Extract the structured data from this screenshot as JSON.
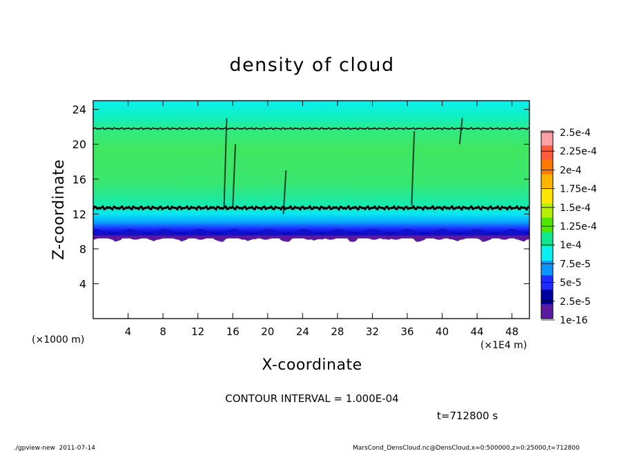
{
  "chart_data": {
    "type": "heatmap",
    "title": "density of cloud",
    "xlabel": "X-coordinate",
    "ylabel": "Z-coordinate",
    "x_unit_left": "(×1000 m)",
    "x_unit_right": "(×1E4 m)",
    "xlim": [
      0,
      50
    ],
    "ylim": [
      0,
      25
    ],
    "x_ticks": [
      4,
      8,
      12,
      16,
      20,
      24,
      28,
      32,
      36,
      40,
      44,
      48
    ],
    "y_ticks": [
      4,
      8,
      12,
      16,
      20,
      24
    ],
    "colorbar_labels": [
      "2.5e-4",
      "2.25e-4",
      "2e-4",
      "1.75e-4",
      "1.5e-4",
      "1.25e-4",
      "1e-4",
      "7.5e-5",
      "5e-5",
      "2.5e-5",
      "1e-16"
    ],
    "colorbar_colors": [
      "#ff9fa6",
      "#ff5a3c",
      "#ff7a00",
      "#ffb400",
      "#ffe600",
      "#b4f000",
      "#50e600",
      "#10e890",
      "#08f0f0",
      "#0a96ff",
      "#1f2bff",
      "#0000a0",
      "#5a1aa0"
    ],
    "contour_interval": "CONTOUR INTERVAL = 1.000E-04",
    "time_label": "t=712800 s",
    "footer_left": "./gpview-new  2011-07-14",
    "footer_right": "MarsCond_DensCloud.nc@DensCloud,x=0:500000,z=0:25000,t=712800"
  }
}
